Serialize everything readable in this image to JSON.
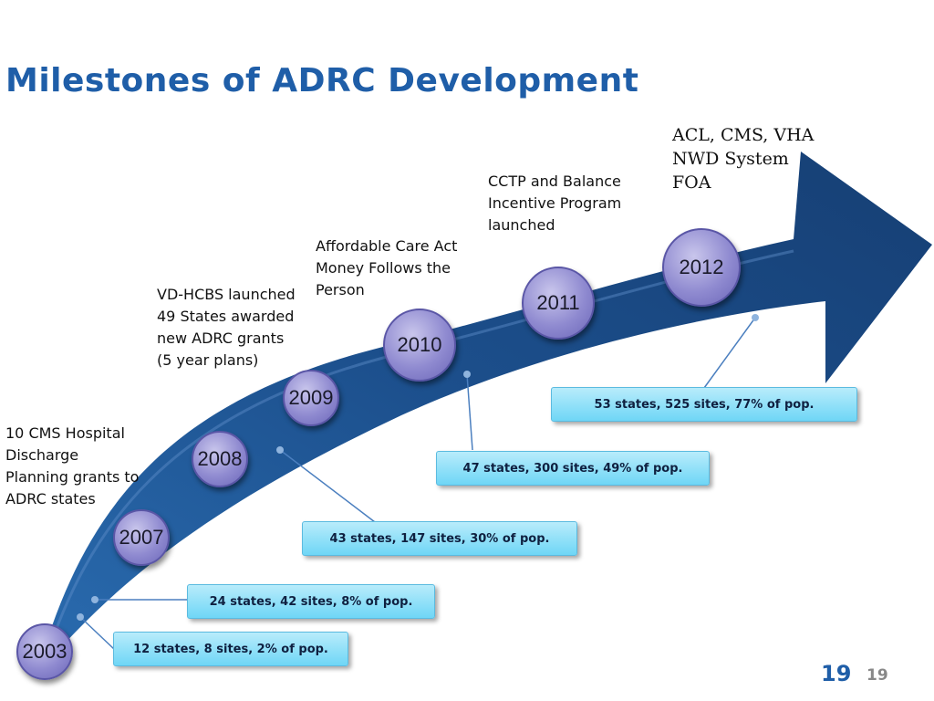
{
  "slide": {
    "title": "Milestones of ADRC Development",
    "page_number": "19",
    "page_number_small": "19"
  },
  "colors": {
    "title": "#1f5ea8",
    "arrow": "#1c4f8c",
    "circle": "#8f8ad0",
    "stat_box": "#6fd6f6"
  },
  "milestones": [
    {
      "year": "2003",
      "stat": "12 states, 8 sites, 2% of pop."
    },
    {
      "year": "2007",
      "event": "10 CMS Hospital\nDischarge\nPlanning grants to\nADRC states",
      "stat": "24 states, 42 sites, 8% of pop."
    },
    {
      "year": "2008",
      "stat": "43 states, 147 sites, 30% of pop."
    },
    {
      "year": "2009",
      "event": "VD-HCBS launched\n49 States awarded\nnew ADRC grants\n(5 year plans)"
    },
    {
      "year": "2010",
      "event": "Affordable Care Act\nMoney Follows the\nPerson",
      "stat": "47 states, 300 sites, 49% of pop."
    },
    {
      "year": "2011",
      "event": "CCTP and Balance\nIncentive Program\nlaunched"
    },
    {
      "year": "2012",
      "event": "ACL, CMS, VHA\nNWD System\nFOA",
      "stat": "53 states, 525 sites, 77% of pop."
    }
  ]
}
